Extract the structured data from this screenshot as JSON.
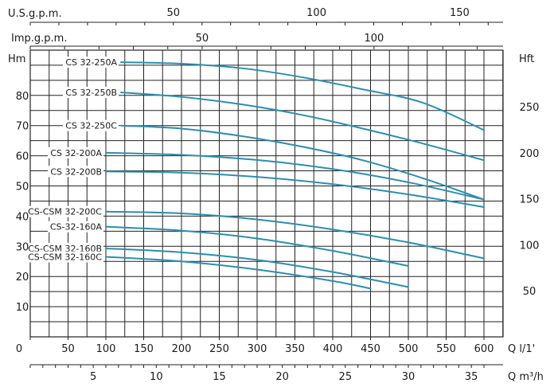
{
  "chart_data": {
    "type": "line",
    "title": "",
    "x_axes": {
      "usgpm": {
        "label": "U.S.g.p.m.",
        "ticks": [
          50,
          100,
          150
        ]
      },
      "impgpm": {
        "label": "Imp.g.p.m.",
        "ticks": [
          50,
          100
        ]
      },
      "lmin": {
        "label": "Q l/1'",
        "ticks": [
          0,
          50,
          100,
          150,
          200,
          250,
          300,
          350,
          400,
          450,
          500,
          550,
          600
        ]
      },
      "m3h": {
        "label": "Q m³/h",
        "ticks": [
          5,
          10,
          15,
          20,
          25,
          30,
          35
        ]
      }
    },
    "y_axes": {
      "m": {
        "label": "Hm",
        "ticks": [
          10,
          20,
          30,
          40,
          50,
          60,
          70,
          80
        ],
        "ylim": [
          0,
          90
        ]
      },
      "ft": {
        "label": "Hft",
        "ticks": [
          50,
          100,
          150,
          200,
          250
        ]
      }
    },
    "xlim": [
      0,
      640
    ],
    "grid": true,
    "curve_color": "#2b8fb0",
    "series": [
      {
        "name": "CS 32-250A",
        "x": [
          120,
          200,
          280,
          360,
          440,
          520,
          600
        ],
        "y": [
          91,
          90.5,
          89,
          86,
          82,
          77.5,
          68.5
        ]
      },
      {
        "name": "CS 32-250B",
        "x": [
          120,
          200,
          280,
          360,
          440,
          520,
          600
        ],
        "y": [
          81,
          79.5,
          77,
          73.5,
          69,
          64,
          58.5
        ]
      },
      {
        "name": "CS 32-250C",
        "x": [
          120,
          200,
          280,
          360,
          440,
          520,
          600
        ],
        "y": [
          70,
          69,
          66.5,
          63,
          58.5,
          52.5,
          45.5
        ]
      },
      {
        "name": "CS 32-200A",
        "x": [
          100,
          200,
          300,
          400,
          500,
          600
        ],
        "y": [
          61,
          60.3,
          58.6,
          55.6,
          51.2,
          45.5
        ]
      },
      {
        "name": "CS 32-200B",
        "x": [
          100,
          200,
          300,
          400,
          500,
          600
        ],
        "y": [
          54.8,
          54.4,
          53,
          50.6,
          47.2,
          43
        ]
      },
      {
        "name": "CS-CSM 32-200C",
        "x": [
          100,
          200,
          300,
          400,
          500,
          600
        ],
        "y": [
          41.5,
          40.9,
          38.9,
          35.6,
          31.3,
          26
        ]
      },
      {
        "name": "CS-32-160A",
        "x": [
          100,
          200,
          300,
          400,
          500
        ],
        "y": [
          36.5,
          35.2,
          32.6,
          28.5,
          23.5
        ]
      },
      {
        "name": "CS-CSM 32-160B",
        "x": [
          100,
          200,
          300,
          400,
          500
        ],
        "y": [
          29.3,
          28,
          25.5,
          21.5,
          16.5
        ]
      },
      {
        "name": "CS-CSM 32-160C",
        "x": [
          100,
          200,
          300,
          400,
          450
        ],
        "y": [
          26.5,
          25,
          22.3,
          18.5,
          16
        ]
      }
    ]
  }
}
